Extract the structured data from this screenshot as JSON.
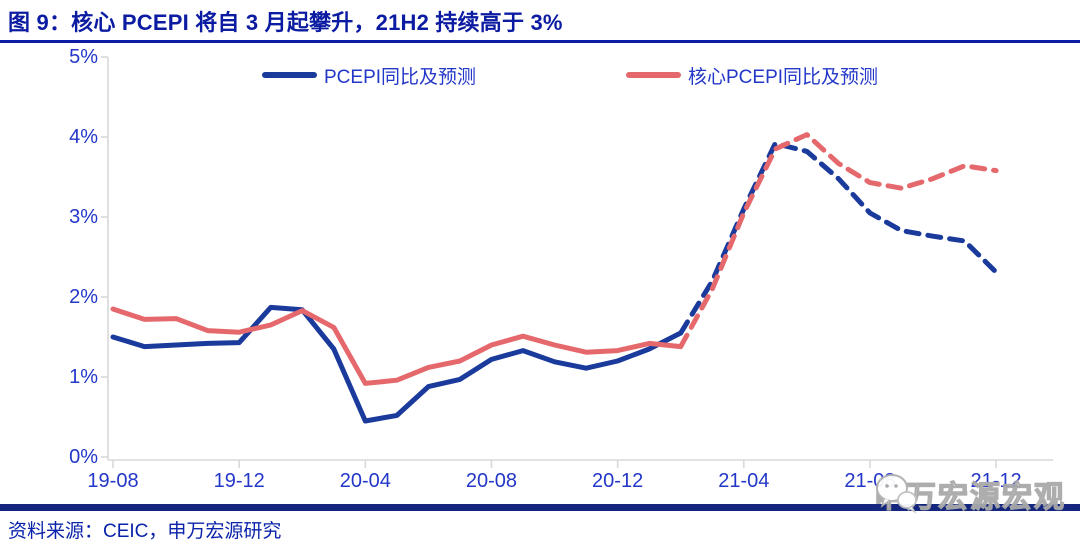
{
  "title": "图 9：核心 PCEPI 将自 3 月起攀升，21H2 持续高于 3%",
  "source": "资料来源：CEIC，申万宏源研究",
  "watermark": "申万宏源宏观",
  "colors": {
    "navy_line": "#1a3a9c",
    "red_line": "#e5696c",
    "title_blue": "#0c1ca2",
    "label_blue": "#2337c8",
    "axis_gray": "#d9d9d9",
    "bottom_bar_navy": "#15267e"
  },
  "legend": [
    {
      "label": "PCEPI同比及预测",
      "color": "#1a3a9c"
    },
    {
      "label": "核心PCEPI同比及预测",
      "color": "#e5696c"
    }
  ],
  "chart_data": {
    "type": "line",
    "title": "核心 PCEPI 将自 3 月起攀升，21H2 持续高于 3%",
    "x": [
      "19-08",
      "19-09",
      "19-10",
      "19-11",
      "19-12",
      "20-01",
      "20-02",
      "20-03",
      "20-04",
      "20-05",
      "20-06",
      "20-07",
      "20-08",
      "20-09",
      "20-10",
      "20-11",
      "20-12",
      "21-01",
      "21-02",
      "21-03",
      "21-04",
      "21-05",
      "21-06",
      "21-07",
      "21-08",
      "21-09",
      "21-10",
      "21-11",
      "21-12"
    ],
    "x_tick_labels": [
      "19-08",
      "19-12",
      "20-04",
      "20-08",
      "20-12",
      "21-04",
      "21-08",
      "21-12"
    ],
    "yticks": [
      "0%",
      "1%",
      "2%",
      "3%",
      "4%",
      "5%"
    ],
    "ylim": [
      0,
      5
    ],
    "grid": false,
    "legend_position": "top",
    "solid_until_index": 18,
    "forecast_note": "values after 21-02 are forecasts drawn with dashed lines",
    "series": [
      {
        "name": "PCEPI同比及预测",
        "color": "#1a3a9c",
        "values": [
          1.5,
          1.38,
          1.4,
          1.42,
          1.43,
          1.87,
          1.84,
          1.35,
          0.45,
          0.52,
          0.88,
          0.97,
          1.22,
          1.33,
          1.19,
          1.11,
          1.2,
          1.35,
          1.55,
          2.2,
          3.1,
          3.92,
          3.82,
          3.48,
          3.05,
          2.83,
          2.76,
          2.7,
          2.31
        ]
      },
      {
        "name": "核心PCEPI同比及预测",
        "color": "#e5696c",
        "values": [
          1.85,
          1.72,
          1.73,
          1.58,
          1.56,
          1.65,
          1.83,
          1.62,
          0.92,
          0.96,
          1.12,
          1.2,
          1.4,
          1.51,
          1.4,
          1.31,
          1.33,
          1.42,
          1.38,
          2.1,
          3.05,
          3.85,
          4.03,
          3.67,
          3.43,
          3.36,
          3.48,
          3.64,
          3.58
        ]
      }
    ]
  }
}
